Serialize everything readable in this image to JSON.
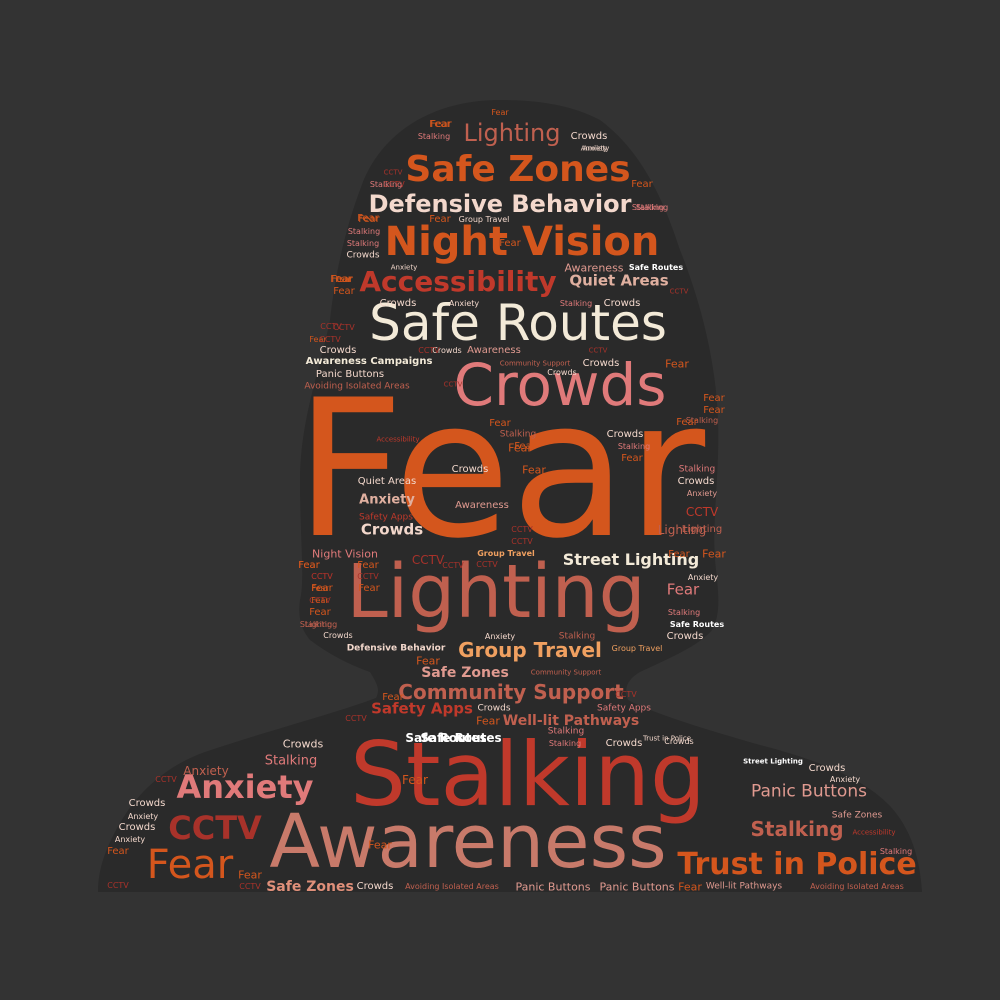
{
  "palette": {
    "background": "#333333",
    "silhouette": "#2a2a2a",
    "burnt_orange": "#d4561d",
    "crimson": "#c0392b",
    "rose": "#e07a7a",
    "terracotta": "#c0604f",
    "cream": "#f3ead8",
    "peach": "#f0a060",
    "dark_red": "#a8322a",
    "white": "#ffffff"
  },
  "words": [
    {
      "text": "Fear",
      "color": "#d4561d"
    },
    {
      "text": "Stalking",
      "color": "#c0392b"
    },
    {
      "text": "Awareness",
      "color": "#c87a6a"
    },
    {
      "text": "Lighting",
      "color": "#c0604f"
    },
    {
      "text": "Crowds",
      "color": "#e07a7a"
    },
    {
      "text": "Safe Routes",
      "color": "#f3ead8"
    },
    {
      "text": "Night Vision",
      "color": "#d4561d"
    },
    {
      "text": "Safe Zones",
      "color": "#d4561d"
    },
    {
      "text": "Accessibility",
      "color": "#c0392b"
    },
    {
      "text": "Defensive Behavior",
      "color": "#f3d8cc"
    },
    {
      "text": "Lighting",
      "color": "#c0604f"
    },
    {
      "text": "Trust in Police",
      "color": "#d4561d"
    },
    {
      "text": "Anxiety",
      "color": "#e07a7a"
    },
    {
      "text": "Fear",
      "color": "#d4561d"
    },
    {
      "text": "CCTV",
      "color": "#a8322a"
    },
    {
      "text": "Group Travel",
      "color": "#f0a060"
    },
    {
      "text": "Street Lighting",
      "color": "#f3ead8"
    },
    {
      "text": "Community Support",
      "color": "#c0604f"
    },
    {
      "text": "Panic Buttons",
      "color": "#e09a90"
    },
    {
      "text": "Stalking",
      "color": "#c0604f"
    },
    {
      "text": "Quiet Areas",
      "color": "#e0b0a0"
    },
    {
      "text": "Safety Apps",
      "color": "#c0392b"
    },
    {
      "text": "Well-lit Pathways",
      "color": "#c0604f"
    },
    {
      "text": "Safe Zones",
      "color": "#e09a90"
    },
    {
      "text": "Safe Zones",
      "color": "#e0907a"
    },
    {
      "text": "Anxiety",
      "color": "#e0b0a0"
    },
    {
      "text": "Crowds",
      "color": "#f3d8cc"
    },
    {
      "text": "Safe Routes",
      "color": "#ffffff"
    },
    {
      "text": "Fear",
      "color": "#d4561d"
    },
    {
      "text": "Fear",
      "color": "#e07a7a"
    },
    {
      "text": "Anxiety",
      "color": "#c0604f"
    },
    {
      "text": "Stalking",
      "color": "#e07a7a"
    },
    {
      "text": "Crowds",
      "color": "#f3d8cc"
    },
    {
      "text": "Awareness Campaigns",
      "color": "#f3ead8"
    },
    {
      "text": "Panic Buttons",
      "color": "#f3d8cc"
    },
    {
      "text": "Avoiding Isolated Areas",
      "color": "#c0604f"
    },
    {
      "text": "Awareness",
      "color": "#e09a90"
    },
    {
      "text": "Community Support",
      "color": "#c0604f"
    },
    {
      "text": "Crowds",
      "color": "#f3d8cc"
    },
    {
      "text": "Fear",
      "color": "#d4561d"
    },
    {
      "text": "Quiet Areas",
      "color": "#f3d8cc"
    },
    {
      "text": "Crowds",
      "color": "#f3d8cc"
    },
    {
      "text": "Awareness",
      "color": "#e09a90"
    },
    {
      "text": "Group Travel",
      "color": "#f0a060"
    },
    {
      "text": "Crowds",
      "color": "#f3d8cc"
    },
    {
      "text": "Anxiety",
      "color": "#e09a90"
    },
    {
      "text": "Lighting",
      "color": "#c0604f"
    },
    {
      "text": "Fear",
      "color": "#d4561d"
    },
    {
      "text": "Night Vision",
      "color": "#e07a7a"
    },
    {
      "text": "Defensive Behavior",
      "color": "#f3d8cc"
    },
    {
      "text": "Safe Routes",
      "color": "#ffffff"
    },
    {
      "text": "Crowds",
      "color": "#f3d8cc"
    },
    {
      "text": "Safe Routes",
      "color": "#ffffff"
    },
    {
      "text": "Crowds",
      "color": "#f3d8cc"
    },
    {
      "text": "Panic Buttons",
      "color": "#e09a90"
    },
    {
      "text": "Panic Buttons",
      "color": "#e09a90"
    },
    {
      "text": "Avoiding Isolated Areas",
      "color": "#c0604f"
    },
    {
      "text": "Avoiding Isolated Areas",
      "color": "#c0604f"
    },
    {
      "text": "Crowds",
      "color": "#f3d8cc"
    },
    {
      "text": "Fear",
      "color": "#d4561d"
    },
    {
      "text": "Well-lit Pathways",
      "color": "#e09a90"
    },
    {
      "text": "Street Lighting",
      "color": "#ffffff"
    },
    {
      "text": "Fear",
      "color": "#d4561d"
    },
    {
      "text": "Fear",
      "color": "#d4561d"
    },
    {
      "text": "Fear",
      "color": "#d4561d"
    },
    {
      "text": "Crowds",
      "color": "#f3d8cc"
    },
    {
      "text": "Crowds",
      "color": "#f3d8cc"
    },
    {
      "text": "Fear",
      "color": "#d4561d"
    },
    {
      "text": "CCTV",
      "color": "#a8322a"
    },
    {
      "text": "Stalking",
      "color": "#e07a7a"
    },
    {
      "text": "Crowds",
      "color": "#f3d8cc"
    },
    {
      "text": "Anxiety",
      "color": "#f3d8cc"
    },
    {
      "text": "Crowds",
      "color": "#f3d8cc"
    },
    {
      "text": "Safe Routes",
      "color": "#ffffff"
    },
    {
      "text": "Group Travel",
      "color": "#f0a060"
    },
    {
      "text": "Community Support",
      "color": "#c0604f"
    },
    {
      "text": "Stalking",
      "color": "#c0604f"
    },
    {
      "text": "Fear",
      "color": "#d4561d"
    },
    {
      "text": "Group Travel",
      "color": "#f3d8cc"
    },
    {
      "text": "Awareness",
      "color": "#e09a90"
    },
    {
      "text": "Safety Apps",
      "color": "#c0392b"
    },
    {
      "text": "Crowds",
      "color": "#f3d8cc"
    },
    {
      "text": "Lighting",
      "color": "#c0604f"
    },
    {
      "text": "CCTV",
      "color": "#c0392b"
    },
    {
      "text": "Fear",
      "color": "#d4561d"
    },
    {
      "text": "Stalking",
      "color": "#e07a7a"
    },
    {
      "text": "Crowds",
      "color": "#f3d8cc"
    },
    {
      "text": "Anxiety",
      "color": "#f3d8cc"
    },
    {
      "text": "Lighting",
      "color": "#c0604f"
    },
    {
      "text": "Stalking",
      "color": "#e07a7a"
    },
    {
      "text": "Anxiety",
      "color": "#f3d8cc"
    },
    {
      "text": "CCTV",
      "color": "#a8322a"
    },
    {
      "text": "Fear",
      "color": "#d4561d"
    },
    {
      "text": "Stalking",
      "color": "#c0604f"
    },
    {
      "text": "Fear",
      "color": "#d4561d"
    },
    {
      "text": "Stalking",
      "color": "#e07a7a"
    },
    {
      "text": "Crowds",
      "color": "#f3d8cc"
    },
    {
      "text": "Fear",
      "color": "#d4561d"
    },
    {
      "text": "CCTV",
      "color": "#a8322a"
    },
    {
      "text": "Stalking",
      "color": "#e07a7a"
    },
    {
      "text": "Crowds",
      "color": "#f3d8cc"
    },
    {
      "text": "Anxiety",
      "color": "#f3d8cc"
    },
    {
      "text": "Fear",
      "color": "#d4561d"
    },
    {
      "text": "CCTV",
      "color": "#a8322a"
    },
    {
      "text": "Fear",
      "color": "#d4561d"
    },
    {
      "text": "Fear",
      "color": "#d4561d"
    },
    {
      "text": "Stalking",
      "color": "#e07a7a"
    },
    {
      "text": "CCTV",
      "color": "#a8322a"
    },
    {
      "text": "Fear",
      "color": "#d4561d"
    },
    {
      "text": "Safety Apps",
      "color": "#e07a7a"
    },
    {
      "text": "CCTV",
      "color": "#a8322a"
    },
    {
      "text": "Crowds",
      "color": "#f3d8cc"
    },
    {
      "text": "CCTV",
      "color": "#a8322a"
    },
    {
      "text": "Fear",
      "color": "#d4561d"
    },
    {
      "text": "Anxiety",
      "color": "#f3d8cc"
    },
    {
      "text": "Stalking",
      "color": "#c0604f"
    },
    {
      "text": "CCTV",
      "color": "#a8322a"
    },
    {
      "text": "Fear",
      "color": "#d4561d"
    },
    {
      "text": "Fear",
      "color": "#d4561d"
    },
    {
      "text": "CCTV",
      "color": "#a8322a"
    },
    {
      "text": "CCTV",
      "color": "#a8322a"
    },
    {
      "text": "Fear",
      "color": "#d4561d"
    },
    {
      "text": "CCTV",
      "color": "#a8322a"
    },
    {
      "text": "CCTV",
      "color": "#a8322a"
    },
    {
      "text": "Accessibility",
      "color": "#c0392b"
    },
    {
      "text": "Accessibility",
      "color": "#c0392b"
    },
    {
      "text": "Safe Zones",
      "color": "#e09a90"
    },
    {
      "text": "Anxiety",
      "color": "#f3d8cc"
    },
    {
      "text": "Stalking",
      "color": "#e07a7a"
    },
    {
      "text": "Crowds",
      "color": "#f3d8cc"
    },
    {
      "text": "Trust in Police",
      "color": "#f3d8cc"
    },
    {
      "text": "CCTV",
      "color": "#a8322a"
    },
    {
      "text": "CCTV",
      "color": "#a8322a"
    },
    {
      "text": "Fear",
      "color": "#d4561d"
    },
    {
      "text": "Fear",
      "color": "#d4561d"
    },
    {
      "text": "Stalking",
      "color": "#c0604f"
    },
    {
      "text": "Crowds",
      "color": "#f3d8cc"
    },
    {
      "text": "Crowds",
      "color": "#f3d8cc"
    },
    {
      "text": "Anxiety",
      "color": "#f3d8cc"
    },
    {
      "text": "Fear",
      "color": "#d4561d"
    },
    {
      "text": "Fear",
      "color": "#d4561d"
    },
    {
      "text": "Stalking",
      "color": "#e07a7a"
    },
    {
      "text": "Fear",
      "color": "#d4561d"
    },
    {
      "text": "CCTV",
      "color": "#a8322a"
    },
    {
      "text": "Fear",
      "color": "#d4561d"
    },
    {
      "text": "CCTV",
      "color": "#a8322a"
    },
    {
      "text": "CCTV",
      "color": "#a8322a"
    },
    {
      "text": "Fear",
      "color": "#d4561d"
    },
    {
      "text": "Stalking",
      "color": "#e07a7a"
    },
    {
      "text": "Stalking",
      "color": "#e07a7a"
    },
    {
      "text": "Crowds",
      "color": "#f3d8cc"
    },
    {
      "text": "Anxiety",
      "color": "#f3d8cc"
    },
    {
      "text": "Stalking",
      "color": "#e07a7a"
    },
    {
      "text": "CCTV",
      "color": "#a8322a"
    },
    {
      "text": "Fear",
      "color": "#d4561d"
    },
    {
      "text": "Fear",
      "color": "#d4561d"
    },
    {
      "text": "Fear",
      "color": "#d4561d"
    },
    {
      "text": "Stalking",
      "color": "#e07a7a"
    },
    {
      "text": "Fear",
      "color": "#d4561d"
    },
    {
      "text": "Fear",
      "color": "#d4561d"
    },
    {
      "text": "Fear",
      "color": "#d4561d"
    },
    {
      "text": "CCTV",
      "color": "#a8322a"
    },
    {
      "text": "CCTV",
      "color": "#a8322a"
    },
    {
      "text": "Anxiety",
      "color": "#f3d8cc"
    },
    {
      "text": "Crowds",
      "color": "#f3d8cc"
    },
    {
      "text": "Fear",
      "color": "#d4561d"
    },
    {
      "text": "Stalking",
      "color": "#e07a7a"
    },
    {
      "text": "CCTV",
      "color": "#a8322a"
    },
    {
      "text": "Fear",
      "color": "#d4561d"
    },
    {
      "text": "CCTV",
      "color": "#a8322a"
    },
    {
      "text": "Fear",
      "color": "#d4561d"
    },
    {
      "text": "CCTV",
      "color": "#a8322a"
    },
    {
      "text": "Fear",
      "color": "#d4561d"
    },
    {
      "text": "Fear",
      "color": "#d4561d"
    },
    {
      "text": "Fear",
      "color": "#d4561d"
    }
  ]
}
